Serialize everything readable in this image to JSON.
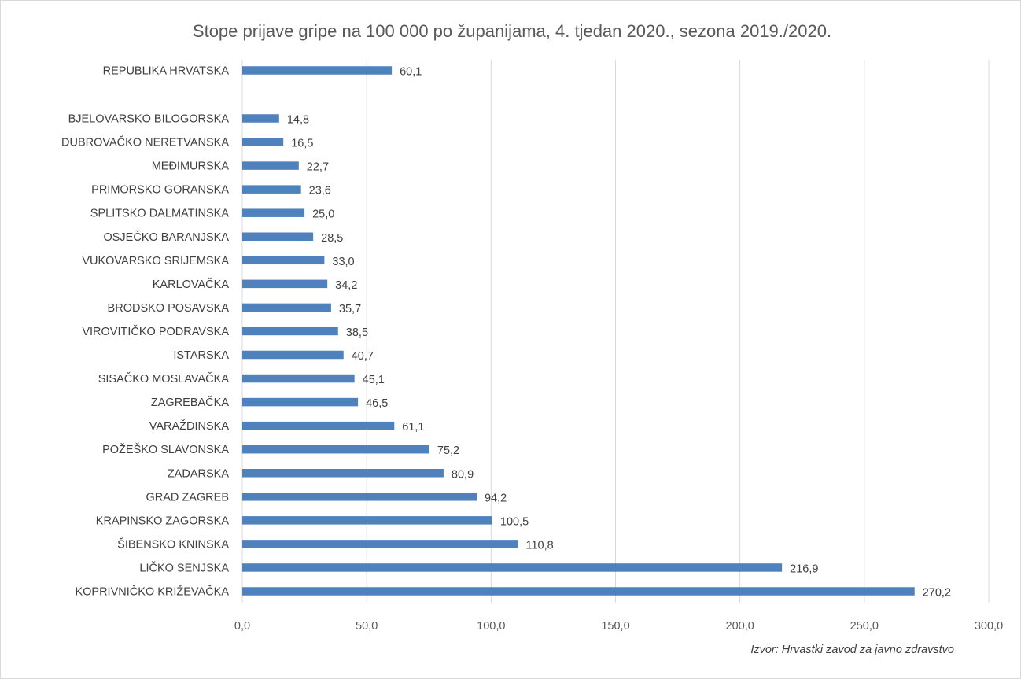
{
  "chart_data": {
    "type": "bar",
    "orientation": "horizontal",
    "title": "Stope prijave gripe na 100 000 po županijama, 4. tjedan 2020., sezona 2019./2020.",
    "xlabel": "",
    "ylabel": "",
    "xlim": [
      0,
      300
    ],
    "ticks": [
      "0,0",
      "50,0",
      "100,0",
      "150,0",
      "200,0",
      "250,0",
      "300,0"
    ],
    "tick_values": [
      0,
      50,
      100,
      150,
      200,
      250,
      300
    ],
    "grid": true,
    "legend": "none",
    "bar_color": "#4f81bd",
    "grid_color": "#d9d9d9",
    "source": "Izvor: Hrvastki zavod za javno zdravstvo",
    "total": {
      "name": "REPUBLIKA HRVATSKA",
      "value": 60.1,
      "label": "60,1"
    },
    "categories": [
      "BJELOVARSKO BILOGORSKA",
      "DUBROVAČKO NERETVANSKA",
      "MEĐIMURSKA",
      "PRIMORSKO GORANSKA",
      "SPLITSKO DALMATINSKA",
      "OSJEČKO BARANJSKA",
      "VUKOVARSKO SRIJEMSKA",
      "KARLOVAČKA",
      "BRODSKO POSAVSKA",
      "VIROVITIČKO PODRAVSKA",
      "ISTARSKA",
      "SISAČKO MOSLAVAČKA",
      "ZAGREBAČKA",
      "VARAŽDINSKA",
      "POŽEŠKO SLAVONSKA",
      "ZADARSKA",
      "GRAD ZAGREB",
      "KRAPINSKO ZAGORSKA",
      "ŠIBENSKO KNINSKA",
      "LIČKO SENJSKA",
      "KOPRIVNIČKO KRIŽEVAČKA"
    ],
    "values": [
      14.8,
      16.5,
      22.7,
      23.6,
      25.0,
      28.5,
      33.0,
      34.2,
      35.7,
      38.5,
      40.7,
      45.1,
      46.5,
      61.1,
      75.2,
      80.9,
      94.2,
      100.5,
      110.8,
      216.9,
      270.2
    ],
    "value_labels": [
      "14,8",
      "16,5",
      "22,7",
      "23,6",
      "25,0",
      "28,5",
      "33,0",
      "34,2",
      "35,7",
      "38,5",
      "40,7",
      "45,1",
      "46,5",
      "61,1",
      "75,2",
      "80,9",
      "94,2",
      "100,5",
      "110,8",
      "216,9",
      "270,2"
    ]
  }
}
